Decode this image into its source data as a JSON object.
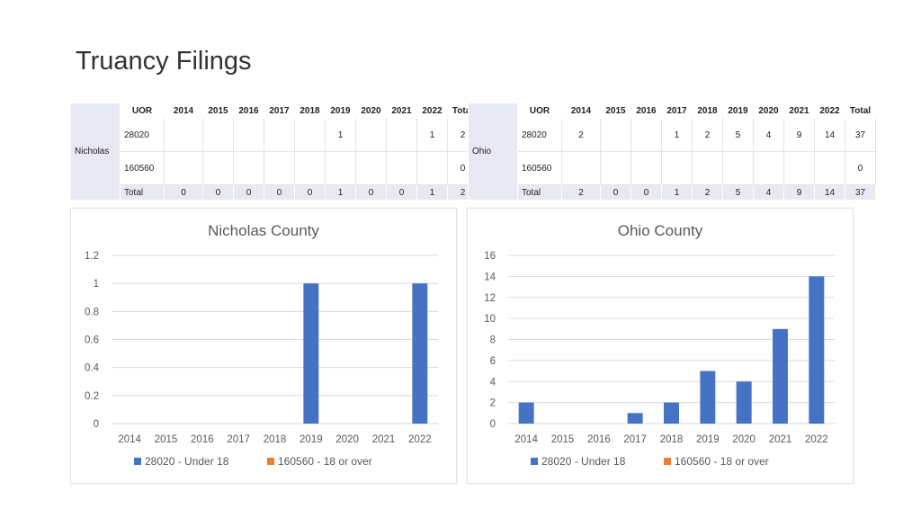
{
  "slide": {
    "title": "Truancy Filings"
  },
  "tables": [
    {
      "county": "Nicholas",
      "header": [
        "UOR",
        "2014",
        "2015",
        "2016",
        "2017",
        "2018",
        "2019",
        "2020",
        "2021",
        "2022",
        "Total"
      ],
      "rows": [
        [
          "28020",
          "",
          "",
          "",
          "",
          "",
          "1",
          "",
          "",
          "1",
          "2"
        ],
        [
          "160560",
          "",
          "",
          "",
          "",
          "",
          "",
          "",
          "",
          "",
          "0"
        ]
      ],
      "total": [
        "Total",
        "0",
        "0",
        "0",
        "0",
        "0",
        "1",
        "0",
        "0",
        "1",
        "2"
      ]
    },
    {
      "county": "Ohio",
      "header": [
        "UOR",
        "2014",
        "2015",
        "2016",
        "2017",
        "2018",
        "2019",
        "2020",
        "2021",
        "2022",
        "Total"
      ],
      "rows": [
        [
          "28020",
          "2",
          "",
          "",
          "1",
          "2",
          "5",
          "4",
          "9",
          "14",
          "37"
        ],
        [
          "160560",
          "",
          "",
          "",
          "",
          "",
          "",
          "",
          "",
          "",
          "0"
        ]
      ],
      "total": [
        "Total",
        "2",
        "0",
        "0",
        "1",
        "2",
        "5",
        "4",
        "9",
        "14",
        "37"
      ]
    }
  ],
  "chart_data": [
    {
      "type": "bar",
      "title": "Nicholas County",
      "categories": [
        "2014",
        "2015",
        "2016",
        "2017",
        "2018",
        "2019",
        "2020",
        "2021",
        "2022"
      ],
      "series": [
        {
          "name": "28020 - Under 18",
          "values": [
            0,
            0,
            0,
            0,
            0,
            1,
            0,
            0,
            1
          ],
          "color": "#4472c4"
        },
        {
          "name": "160560 - 18 or over",
          "values": [
            0,
            0,
            0,
            0,
            0,
            0,
            0,
            0,
            0
          ],
          "color": "#ed7d31"
        }
      ],
      "ylim": [
        0,
        1.2
      ],
      "yticks": [
        "0",
        "0.2",
        "0.4",
        "0.6",
        "0.8",
        "1",
        "1.2"
      ],
      "grid": true,
      "legend": "bottom"
    },
    {
      "type": "bar",
      "title": "Ohio County",
      "categories": [
        "2014",
        "2015",
        "2016",
        "2017",
        "2018",
        "2019",
        "2020",
        "2021",
        "2022"
      ],
      "series": [
        {
          "name": "28020 - Under 18",
          "values": [
            2,
            0,
            0,
            1,
            2,
            5,
            4,
            9,
            14
          ],
          "color": "#4472c4"
        },
        {
          "name": "160560 - 18 or over",
          "values": [
            0,
            0,
            0,
            0,
            0,
            0,
            0,
            0,
            0
          ],
          "color": "#ed7d31"
        }
      ],
      "ylim": [
        0,
        16
      ],
      "yticks": [
        "0",
        "2",
        "4",
        "6",
        "8",
        "10",
        "12",
        "14",
        "16"
      ],
      "grid": true,
      "legend": "bottom"
    }
  ]
}
